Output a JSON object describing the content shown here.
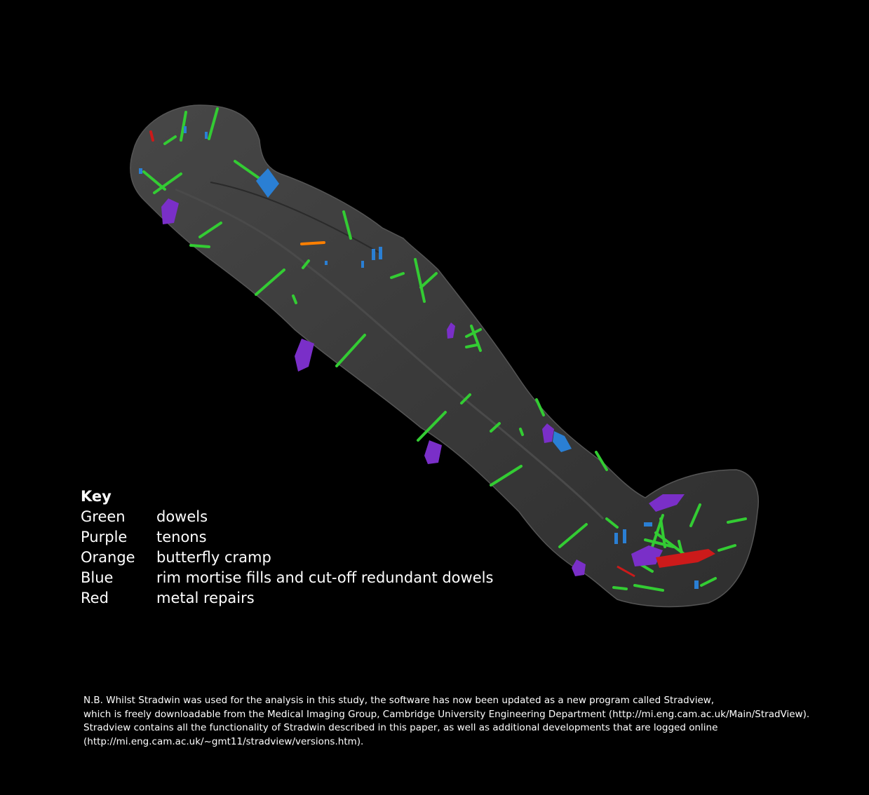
{
  "image": {
    "subject": "3d-coffin-model",
    "colors": {
      "background": "#000000",
      "body": "#3a3a3a",
      "dowels": "#33cc33",
      "tenons": "#7a2fc8",
      "butterfly_cramp": "#ff7f00",
      "mortise": "#2a7fd4",
      "metal": "#cc1a1a"
    }
  },
  "key": {
    "title": "Key",
    "rows": [
      {
        "color": "Green",
        "label": "dowels"
      },
      {
        "color": "Purple",
        "label": "tenons"
      },
      {
        "color": "Orange",
        "label": "butterfly cramp"
      },
      {
        "color": "Blue",
        "label": "rim mortise fills and cut-off redundant dowels"
      },
      {
        "color": "Red",
        "label": "metal repairs"
      }
    ]
  },
  "note": {
    "lines": [
      "N.B. Whilst Stradwin was used for the analysis in this study, the software has now been updated as a new program called Stradview,",
      "which is freely downloadable from the Medical Imaging Group, Cambridge University Engineering Department (http://mi.eng.cam.ac.uk/Main/StradView).",
      "Stradview contains all the functionality of Stradwin described in this paper, as well as additional developments that are logged online",
      "(http://mi.eng.cam.ac.uk/~gmt11/stradview/versions.htm)."
    ]
  }
}
